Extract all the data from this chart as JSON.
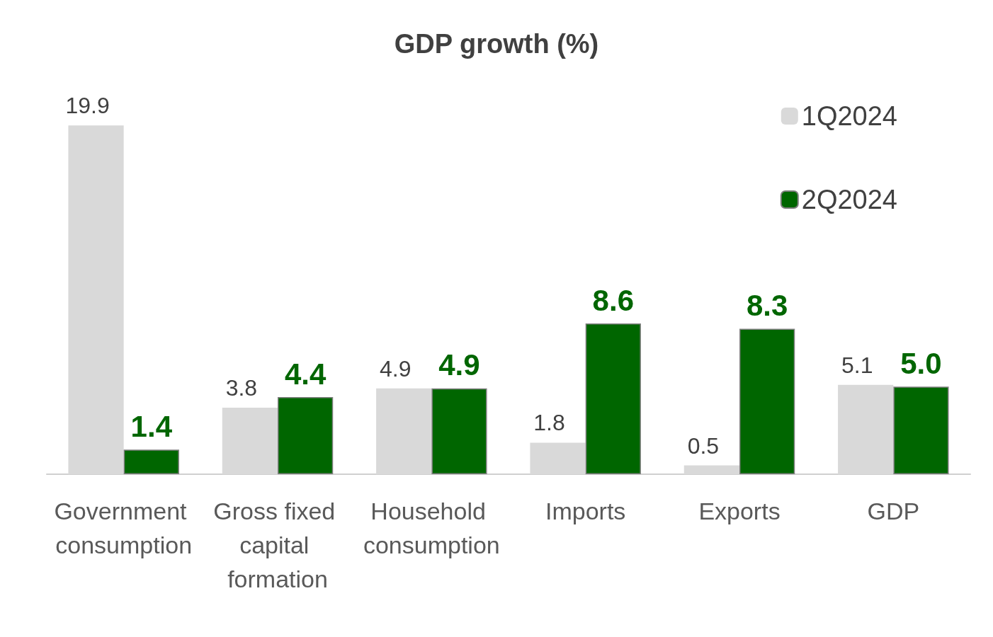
{
  "chart_data": {
    "type": "bar",
    "title": "GDP growth (%)",
    "categories": [
      "Government consumption",
      "Gross fixed capital formation",
      "Household consumption",
      "Imports",
      "Exports",
      "GDP"
    ],
    "series": [
      {
        "name": "1Q2024",
        "color": "#d9d9d9",
        "values": [
          19.9,
          3.8,
          4.9,
          1.8,
          0.5,
          5.1
        ],
        "value_labels": [
          "19.9",
          "3.8",
          "4.9",
          "1.8",
          "0.5",
          "5.1"
        ]
      },
      {
        "name": "2Q2024",
        "color": "#006600",
        "values": [
          1.4,
          4.4,
          4.9,
          8.6,
          8.3,
          5.0
        ],
        "value_labels": [
          "1.4",
          "4.4",
          "4.9",
          "8.6",
          "8.3",
          "5.0"
        ]
      }
    ],
    "legend": "top right"
  }
}
